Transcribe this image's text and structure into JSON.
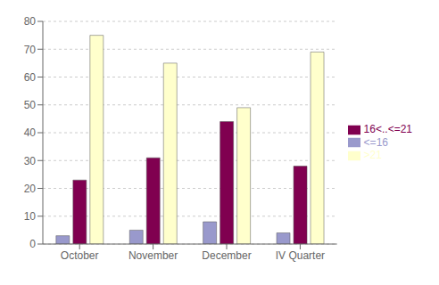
{
  "chart_data": {
    "type": "bar",
    "categories": [
      "October",
      "November",
      "December",
      "IV Quarter"
    ],
    "series": [
      {
        "name": "<=16",
        "color": "#9999cc",
        "values": [
          3,
          5,
          8,
          4
        ]
      },
      {
        "name": "16<..<=21",
        "color": "#800050",
        "values": [
          23,
          31,
          44,
          28
        ]
      },
      {
        "name": ">21",
        "color": "#ffffcc",
        "values": [
          75,
          65,
          49,
          69
        ]
      }
    ],
    "ylim": [
      0,
      80
    ],
    "yticks": [
      0,
      10,
      20,
      30,
      40,
      50,
      60,
      70,
      80
    ],
    "grid": true,
    "legend": "right"
  }
}
